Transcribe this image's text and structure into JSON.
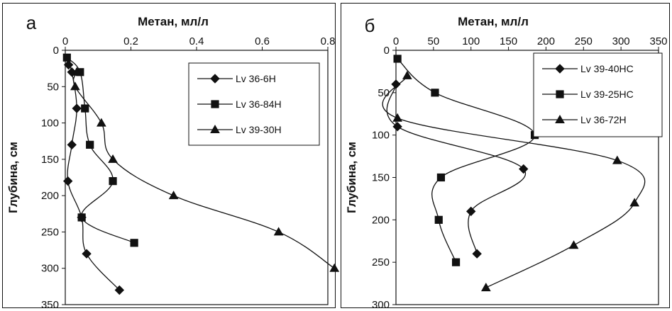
{
  "chart_data": [
    {
      "type": "line",
      "panel_label": "а",
      "xlabel": "Метан, мл/л",
      "ylabel": "Глубина, см",
      "xlim": [
        0,
        0.8
      ],
      "ylim": [
        0,
        350
      ],
      "x_ticks": [
        "0",
        "0.2",
        "0.4",
        "0.6",
        "0.8"
      ],
      "y_ticks": [
        "0",
        "50",
        "100",
        "150",
        "200",
        "250",
        "300",
        "350"
      ],
      "y_inverted": true,
      "x_axis_position": "top",
      "grid": false,
      "legend_position": "top-right",
      "series": [
        {
          "name": "Lv 36-6H",
          "marker": "diamond",
          "points": [
            [
              0.01,
              20
            ],
            [
              0.02,
              30
            ],
            [
              0.035,
              80
            ],
            [
              0.02,
              130
            ],
            [
              0.008,
              180
            ],
            [
              0.05,
              230
            ],
            [
              0.065,
              280
            ],
            [
              0.165,
              330
            ]
          ]
        },
        {
          "name": "Lv 36-84H",
          "marker": "square",
          "points": [
            [
              0.005,
              10
            ],
            [
              0.045,
              30
            ],
            [
              0.06,
              80
            ],
            [
              0.075,
              130
            ],
            [
              0.145,
              180
            ],
            [
              0.05,
              230
            ],
            [
              0.21,
              265
            ]
          ]
        },
        {
          "name": "Lv 39-30H",
          "marker": "triangle",
          "points": [
            [
              0.035,
              30
            ],
            [
              0.03,
              50
            ],
            [
              0.11,
              100
            ],
            [
              0.145,
              150
            ],
            [
              0.33,
              200
            ],
            [
              0.65,
              250
            ],
            [
              0.82,
              300
            ]
          ]
        }
      ]
    },
    {
      "type": "line",
      "panel_label": "б",
      "xlabel": "Метан, мл/л",
      "ylabel": "Глубина, см",
      "xlim": [
        0,
        350
      ],
      "ylim": [
        0,
        300
      ],
      "x_ticks": [
        "0",
        "50",
        "100",
        "150",
        "200",
        "250",
        "300",
        "350"
      ],
      "y_ticks": [
        "0",
        "50",
        "100",
        "150",
        "200",
        "250",
        "300"
      ],
      "y_inverted": true,
      "x_axis_position": "top",
      "grid": false,
      "legend_position": "top-right",
      "series": [
        {
          "name": "Lv 39-40HC",
          "marker": "diamond",
          "points": [
            [
              0,
              40
            ],
            [
              2,
              90
            ],
            [
              170,
              140
            ],
            [
              100,
              190
            ],
            [
              108,
              240
            ]
          ]
        },
        {
          "name": "Lv 39-25HC",
          "marker": "square",
          "points": [
            [
              2,
              10
            ],
            [
              52,
              50
            ],
            [
              185,
              100
            ],
            [
              60,
              150
            ],
            [
              57,
              200
            ],
            [
              80,
              250
            ]
          ]
        },
        {
          "name": "Lv 36-72H",
          "marker": "triangle",
          "points": [
            [
              15,
              30
            ],
            [
              2,
              80
            ],
            [
              295,
              130
            ],
            [
              318,
              180
            ],
            [
              237,
              230
            ],
            [
              120,
              280
            ]
          ]
        }
      ]
    }
  ]
}
